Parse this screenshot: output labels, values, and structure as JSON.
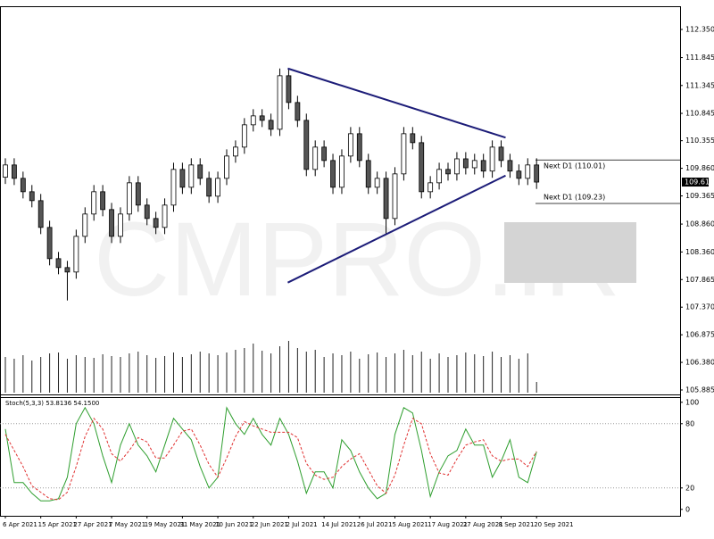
{
  "chart_data": [
    {
      "type": "candlestick",
      "watermark": "CMPRO.IR",
      "categories": [
        "6 Apr 2021",
        null,
        null,
        null,
        "15 Apr 2021",
        null,
        null,
        null,
        "27 Apr 2021",
        null,
        null,
        null,
        "7 May 2021",
        null,
        null,
        null,
        "19 May 2021",
        null,
        null,
        null,
        "31 May 2021",
        null,
        null,
        null,
        "10 Jun 2021",
        null,
        null,
        null,
        "22 Jun 2021",
        null,
        null,
        null,
        "2 Jul 2021",
        null,
        null,
        null,
        "14 Jul 2021",
        null,
        null,
        null,
        "26 Jul 2021",
        null,
        null,
        null,
        "5 Aug 2021",
        null,
        null,
        null,
        "17 Aug 2021",
        null,
        null,
        null,
        "27 Aug 2021",
        null,
        null,
        null,
        "8 Sep 2021",
        null,
        null,
        null,
        "20 Sep 2021"
      ],
      "open": [
        109.7,
        109.92,
        109.68,
        109.44,
        109.28,
        108.8,
        108.24,
        108.08,
        108.0,
        108.64,
        109.04,
        109.44,
        109.12,
        108.64,
        109.04,
        109.6,
        109.2,
        108.96,
        108.8,
        109.2,
        109.84,
        109.52,
        109.92,
        109.68,
        109.36,
        109.68,
        110.08,
        110.24,
        110.64,
        110.8,
        110.72,
        110.56,
        111.52,
        111.04,
        110.72,
        109.84,
        110.24,
        110.0,
        109.52,
        110.08,
        110.48,
        110.0,
        109.52,
        109.68,
        108.96,
        109.76,
        110.48,
        110.32,
        109.44,
        109.6,
        109.84,
        109.76,
        110.03,
        109.87,
        110.0,
        109.81,
        110.24,
        110.0,
        109.81,
        109.68,
        109.92
      ],
      "high": [
        110.04,
        110.04,
        109.8,
        109.56,
        109.4,
        108.92,
        108.36,
        108.2,
        108.76,
        109.16,
        109.56,
        109.56,
        109.24,
        109.16,
        109.72,
        109.72,
        109.32,
        109.08,
        109.32,
        109.96,
        109.96,
        110.04,
        110.04,
        109.8,
        109.8,
        110.2,
        110.36,
        110.76,
        110.92,
        110.92,
        110.84,
        111.65,
        111.64,
        111.16,
        110.84,
        110.36,
        110.36,
        110.12,
        110.2,
        110.6,
        110.6,
        110.12,
        109.8,
        109.8,
        109.88,
        110.6,
        110.6,
        110.44,
        109.72,
        109.96,
        109.96,
        110.15,
        110.15,
        110.12,
        110.12,
        110.36,
        110.36,
        110.12,
        109.93,
        110.04,
        110.04
      ],
      "low": [
        109.58,
        109.56,
        109.32,
        109.16,
        108.68,
        108.12,
        107.96,
        107.49,
        107.88,
        108.52,
        108.92,
        109.0,
        108.52,
        108.52,
        108.92,
        109.08,
        108.84,
        108.68,
        108.68,
        109.08,
        109.4,
        109.4,
        109.56,
        109.24,
        109.24,
        109.56,
        109.96,
        110.12,
        110.52,
        110.6,
        110.44,
        110.44,
        110.92,
        110.6,
        109.72,
        109.72,
        109.88,
        109.4,
        109.4,
        109.96,
        109.88,
        109.4,
        109.4,
        108.69,
        108.84,
        109.64,
        110.2,
        109.32,
        109.32,
        109.48,
        109.64,
        109.64,
        109.75,
        109.75,
        109.69,
        109.69,
        109.88,
        109.69,
        109.56,
        109.56,
        109.49
      ],
      "close": [
        109.92,
        109.68,
        109.44,
        109.28,
        108.8,
        108.24,
        108.08,
        108.0,
        108.64,
        109.04,
        109.44,
        109.12,
        108.64,
        109.04,
        109.6,
        109.2,
        108.96,
        108.8,
        109.2,
        109.84,
        109.52,
        109.92,
        109.68,
        109.36,
        109.68,
        110.08,
        110.24,
        110.64,
        110.8,
        110.72,
        110.56,
        111.52,
        111.04,
        110.72,
        109.84,
        110.24,
        110.0,
        109.52,
        110.08,
        110.48,
        110.0,
        109.52,
        109.68,
        108.96,
        109.76,
        110.48,
        110.32,
        109.44,
        109.6,
        109.84,
        109.76,
        110.03,
        109.87,
        110.0,
        109.81,
        110.24,
        110.0,
        109.81,
        109.68,
        109.92,
        109.613
      ],
      "volume": [
        40,
        38,
        42,
        36,
        40,
        44,
        45,
        38,
        42,
        40,
        39,
        43,
        41,
        40,
        44,
        46,
        42,
        39,
        41,
        45,
        40,
        43,
        46,
        44,
        42,
        45,
        48,
        50,
        55,
        47,
        44,
        52,
        58,
        50,
        46,
        48,
        40,
        44,
        42,
        46,
        38,
        43,
        45,
        40,
        44,
        48,
        42,
        46,
        38,
        44,
        40,
        42,
        45,
        43,
        41,
        46,
        40,
        42,
        38,
        44,
        12
      ],
      "ylim": [
        105.805,
        112.75
      ],
      "yticks": [
        {
          "value": 112.35,
          "label": "112.350"
        },
        {
          "value": 111.845,
          "label": "111.845"
        },
        {
          "value": 111.345,
          "label": "111.345"
        },
        {
          "value": 110.845,
          "label": "110.845"
        },
        {
          "value": 110.355,
          "label": "110.355"
        },
        {
          "value": 109.86,
          "label": "109.860"
        },
        {
          "value": 109.365,
          "label": "109.365"
        },
        {
          "value": 108.86,
          "label": "108.860"
        },
        {
          "value": 108.36,
          "label": "108.360"
        },
        {
          "value": 107.865,
          "label": "107.865"
        },
        {
          "value": 107.37,
          "label": "107.370"
        },
        {
          "value": 106.875,
          "label": "106.875"
        },
        {
          "value": 106.38,
          "label": "106.380"
        },
        {
          "value": 105.885,
          "label": "105.885"
        }
      ],
      "current_price": {
        "value": 109.613,
        "label": "109.613"
      },
      "levels": [
        {
          "value": 110.01,
          "label": "Next D1 (110.01)"
        },
        {
          "value": 109.23,
          "label": "Next D1 (109.23)"
        }
      ],
      "trendlines": [
        {
          "color": "#1c1c78",
          "x": [
            31.9,
            56.5
          ],
          "y": [
            111.65,
            110.41
          ]
        },
        {
          "color": "#1c1c78",
          "x": [
            31.9,
            56.5
          ],
          "y": [
            107.81,
            109.73
          ]
        }
      ]
    },
    {
      "type": "line",
      "title": "Stoch(5,3,3) 53.8136 54.1500",
      "series": [
        {
          "color": "#2e9e2e",
          "style": "solid",
          "values": [
            75,
            25,
            25,
            15,
            8,
            8,
            10,
            30,
            80,
            95,
            80,
            50,
            25,
            60,
            80,
            60,
            50,
            35,
            60,
            85,
            75,
            65,
            40,
            20,
            30,
            95,
            80,
            70,
            85,
            70,
            60,
            85,
            70,
            45,
            15,
            35,
            35,
            20,
            65,
            55,
            35,
            20,
            10,
            15,
            70,
            95,
            90,
            55,
            12,
            35,
            50,
            55,
            75,
            60,
            60,
            30,
            45,
            65,
            30,
            25,
            53.8136
          ]
        },
        {
          "color": "#e03030",
          "style": "dashed",
          "values": [
            70,
            55,
            40,
            22,
            16,
            10,
            9,
            16,
            40,
            68,
            85,
            75,
            52,
            45,
            55,
            67,
            63,
            48,
            48,
            60,
            73,
            75,
            60,
            42,
            30,
            48,
            68,
            82,
            78,
            75,
            72,
            72,
            72,
            67,
            43,
            32,
            28,
            30,
            40,
            47,
            52,
            37,
            22,
            15,
            32,
            60,
            85,
            80,
            52,
            34,
            32,
            47,
            60,
            63,
            65,
            50,
            45,
            47,
            47,
            40,
            54.15
          ]
        }
      ],
      "ylim": [
        -6,
        104
      ],
      "yticks": [
        0,
        20,
        80,
        100
      ],
      "levels": [
        20,
        80
      ]
    }
  ]
}
